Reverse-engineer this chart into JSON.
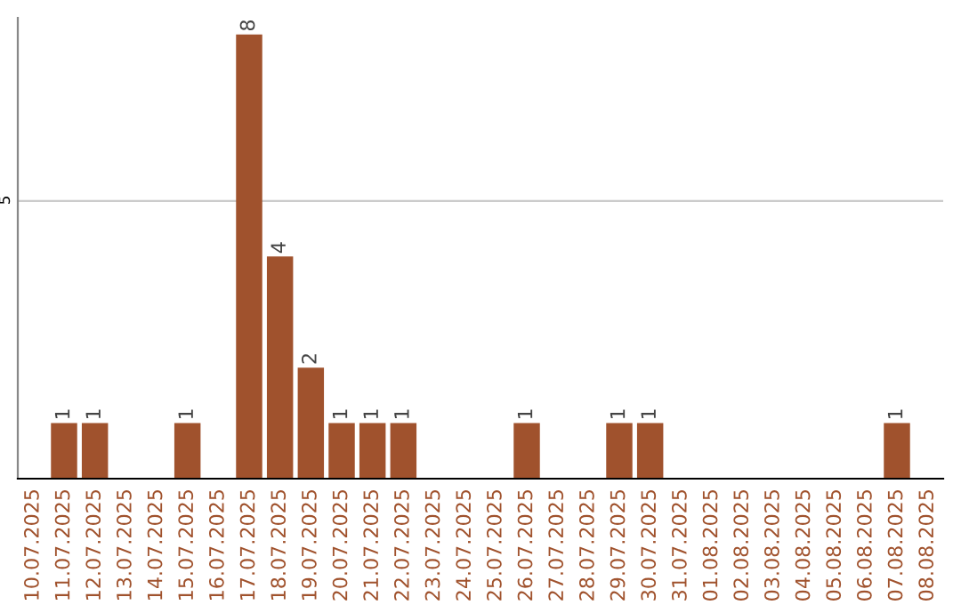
{
  "chart_data": {
    "type": "bar",
    "categories": [
      "10.07.2025",
      "11.07.2025",
      "12.07.2025",
      "13.07.2025",
      "14.07.2025",
      "15.07.2025",
      "16.07.2025",
      "17.07.2025",
      "18.07.2025",
      "19.07.2025",
      "20.07.2025",
      "21.07.2025",
      "22.07.2025",
      "23.07.2025",
      "24.07.2025",
      "25.07.2025",
      "26.07.2025",
      "27.07.2025",
      "28.07.2025",
      "29.07.2025",
      "30.07.2025",
      "31.07.2025",
      "01.08.2025",
      "02.08.2025",
      "03.08.2025",
      "04.08.2025",
      "05.08.2025",
      "06.08.2025",
      "07.08.2025",
      "08.08.2025"
    ],
    "values": [
      0,
      1,
      1,
      0,
      0,
      1,
      0,
      8,
      4,
      2,
      1,
      1,
      1,
      0,
      0,
      0,
      1,
      0,
      0,
      1,
      1,
      0,
      0,
      0,
      0,
      0,
      0,
      0,
      1,
      0
    ],
    "value_labels": [
      null,
      "1",
      "1",
      null,
      null,
      "1",
      null,
      "8",
      "4",
      "2",
      "1",
      "1",
      "1",
      null,
      null,
      null,
      "1",
      null,
      null,
      "1",
      "1",
      null,
      null,
      null,
      null,
      null,
      null,
      null,
      "1",
      null
    ],
    "color": "#a0522d",
    "ylim": [
      0,
      8.3
    ],
    "yticks": [
      5
    ],
    "grid": "y"
  }
}
